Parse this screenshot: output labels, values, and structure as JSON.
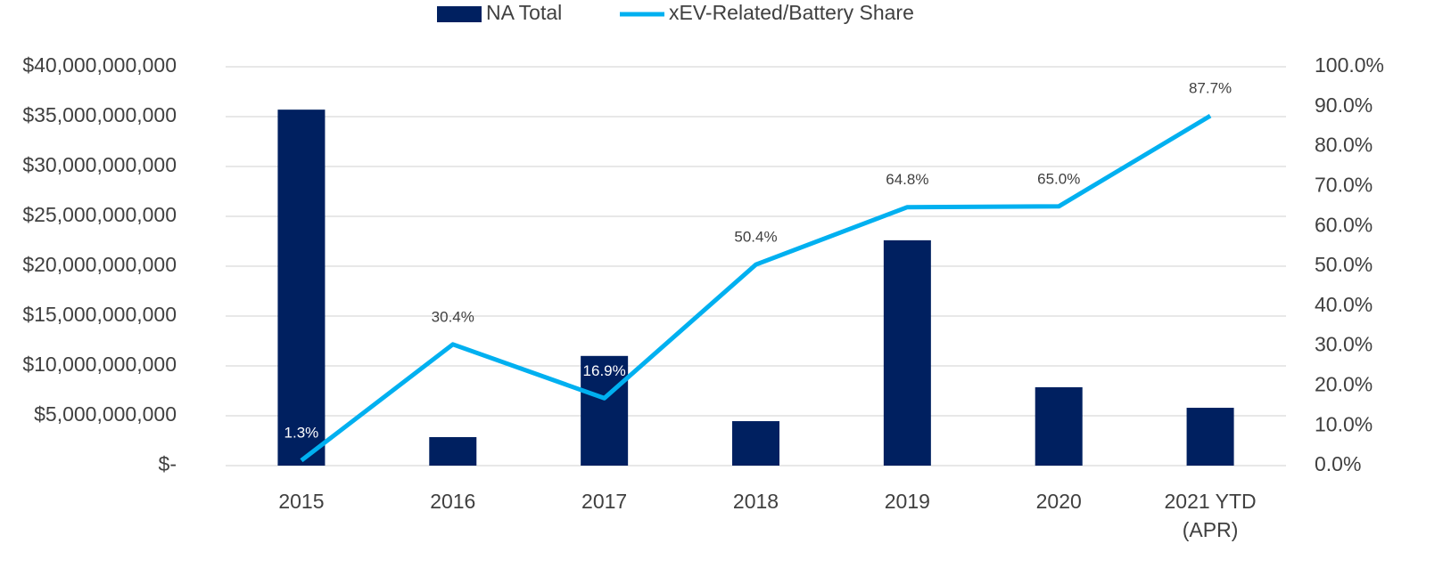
{
  "chart_data": {
    "type": "bar-line",
    "categories": [
      "2015",
      "2016",
      "2017",
      "2018",
      "2019",
      "2020",
      "2021 YTD (APR)"
    ],
    "series": [
      {
        "name": "NA Total",
        "color": "#002060",
        "values": [
          35700000000,
          2860000000,
          11000000000,
          4460000000,
          22600000000,
          7860000000,
          5800000000
        ]
      },
      {
        "name": "xEV-Related/Battery Share",
        "color": "#00b0f0",
        "axis": "y2",
        "values": [
          1.3,
          30.4,
          16.9,
          50.4,
          64.8,
          65.0,
          87.7
        ],
        "value_labels": [
          "1.3%",
          "30.4%",
          "16.9%",
          "50.4%",
          "64.8%",
          "65.0%",
          "87.7%"
        ]
      }
    ],
    "ylim": [
      0,
      40000000000
    ],
    "yticks": [
      {
        "value": 0,
        "label": "$-"
      },
      {
        "value": 5000000000,
        "label": "$5,000,000,000"
      },
      {
        "value": 10000000000,
        "label": "$10,000,000,000"
      },
      {
        "value": 15000000000,
        "label": "$15,000,000,000"
      },
      {
        "value": 20000000000,
        "label": "$20,000,000,000"
      },
      {
        "value": 25000000000,
        "label": "$25,000,000,000"
      },
      {
        "value": 30000000000,
        "label": "$30,000,000,000"
      },
      {
        "value": 35000000000,
        "label": "$35,000,000,000"
      },
      {
        "value": 40000000000,
        "label": "$40,000,000,000"
      }
    ],
    "y2lim": [
      0,
      100
    ],
    "y2ticks": [
      {
        "value": 0,
        "label": "0.0%"
      },
      {
        "value": 10,
        "label": "10.0%"
      },
      {
        "value": 20,
        "label": "20.0%"
      },
      {
        "value": 30,
        "label": "30.0%"
      },
      {
        "value": 40,
        "label": "40.0%"
      },
      {
        "value": 50,
        "label": "50.0%"
      },
      {
        "value": 60,
        "label": "60.0%"
      },
      {
        "value": 70,
        "label": "70.0%"
      },
      {
        "value": 80,
        "label": "80.0%"
      },
      {
        "value": 90,
        "label": "90.0%"
      },
      {
        "value": 100,
        "label": "100.0%"
      }
    ],
    "grid": true,
    "legend": "top"
  }
}
